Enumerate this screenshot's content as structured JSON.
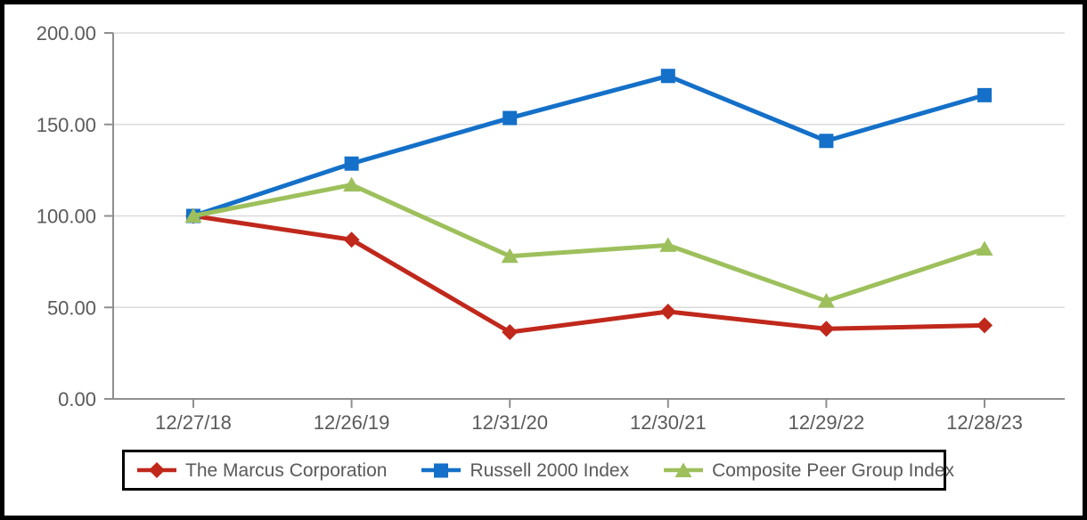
{
  "chart_data": {
    "type": "line",
    "categories": [
      "12/27/18",
      "12/26/19",
      "12/31/20",
      "12/30/21",
      "12/29/22",
      "12/28/23"
    ],
    "series": [
      {
        "name": "The Marcus Corporation",
        "marker": "diamond",
        "color": "#c0281c",
        "values": [
          100.0,
          87.0,
          36.5,
          47.7,
          38.3,
          40.2
        ]
      },
      {
        "name": "Russell 2000 Index",
        "marker": "square",
        "color": "#1470c8",
        "values": [
          100.0,
          128.6,
          153.5,
          176.5,
          141.0,
          166.0
        ]
      },
      {
        "name": "Composite Peer Group Index",
        "marker": "triangle",
        "color": "#9dc05c",
        "values": [
          100.0,
          117.0,
          78.0,
          84.0,
          53.5,
          82.0
        ]
      }
    ],
    "title": "",
    "xlabel": "",
    "ylabel": "",
    "ylim": [
      0,
      200
    ],
    "y_ticks": [
      0,
      50,
      100,
      150,
      200
    ],
    "y_tick_labels": [
      "0.00",
      "50.00",
      "100.00",
      "150.00",
      "200.00"
    ],
    "grid": true,
    "legend_position": "bottom"
  },
  "colors": {
    "axis": "#8f8f8f",
    "gridline": "#dbdbdb",
    "tick_text": "#5a5a5a",
    "legend_border": "#000000",
    "frame_border": "#000000"
  }
}
